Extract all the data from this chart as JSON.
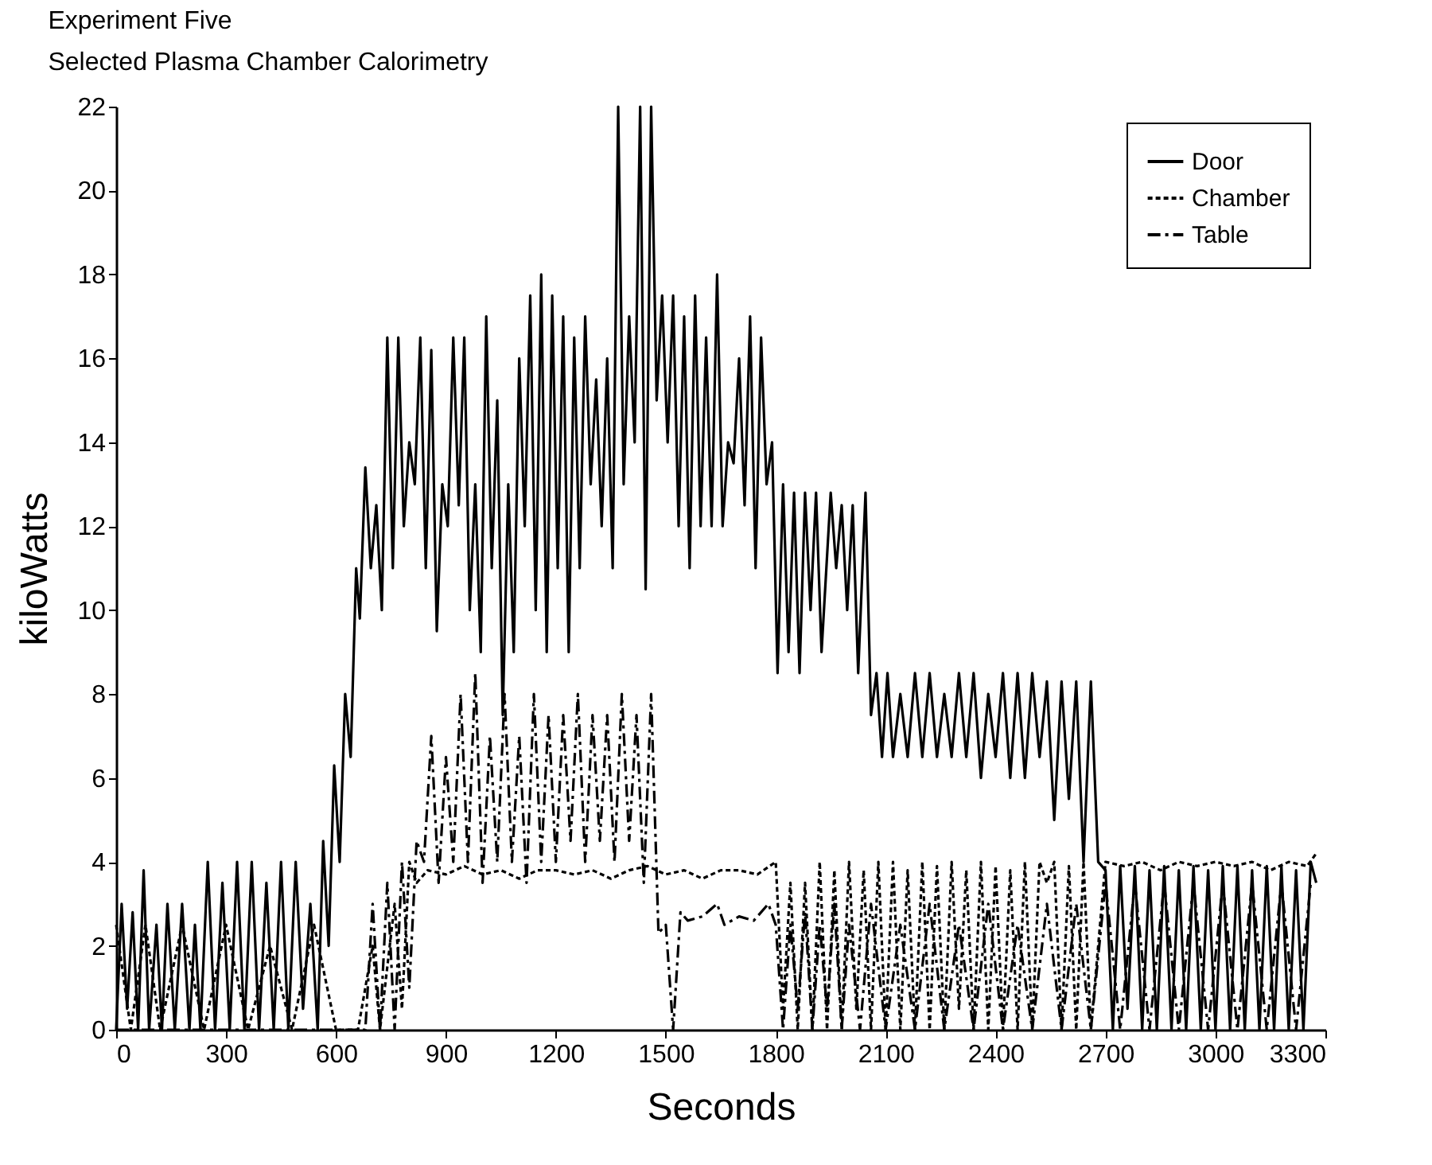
{
  "chart_data": {
    "type": "line",
    "title": "Experiment Five",
    "subtitle": "Selected Plasma Chamber Calorimetry",
    "xlabel": "Seconds",
    "ylabel": "kiloWatts",
    "xlim": [
      0,
      3300
    ],
    "xticks": [
      0,
      300,
      600,
      900,
      1200,
      1500,
      1800,
      2100,
      2400,
      2700,
      3000,
      3300
    ],
    "ylim": [
      0,
      22
    ],
    "yticks": [
      0,
      2,
      4,
      6,
      8,
      10,
      12,
      14,
      16,
      18,
      20,
      22
    ],
    "grid": false,
    "legend": "top right",
    "series": [
      {
        "name": "Door",
        "color": "#000000",
        "line_style": "solid",
        "x": [
          0,
          15,
          30,
          45,
          60,
          75,
          90,
          110,
          125,
          140,
          160,
          180,
          200,
          215,
          230,
          250,
          270,
          290,
          310,
          330,
          350,
          370,
          390,
          410,
          430,
          450,
          470,
          490,
          510,
          530,
          550,
          565,
          580,
          595,
          610,
          625,
          640,
          655,
          665,
          680,
          695,
          710,
          725,
          740,
          755,
          770,
          785,
          800,
          815,
          830,
          845,
          860,
          875,
          890,
          905,
          920,
          935,
          950,
          965,
          980,
          995,
          1010,
          1025,
          1040,
          1055,
          1070,
          1085,
          1100,
          1115,
          1130,
          1145,
          1160,
          1175,
          1190,
          1205,
          1220,
          1235,
          1250,
          1265,
          1280,
          1295,
          1310,
          1325,
          1340,
          1355,
          1370,
          1385,
          1400,
          1415,
          1430,
          1445,
          1460,
          1475,
          1490,
          1505,
          1520,
          1535,
          1550,
          1565,
          1580,
          1595,
          1610,
          1625,
          1640,
          1655,
          1670,
          1685,
          1700,
          1715,
          1730,
          1745,
          1760,
          1775,
          1790,
          1805,
          1820,
          1835,
          1850,
          1865,
          1880,
          1895,
          1910,
          1925,
          1950,
          1965,
          1980,
          1995,
          2010,
          2025,
          2045,
          2060,
          2075,
          2090,
          2105,
          2120,
          2140,
          2160,
          2180,
          2200,
          2220,
          2240,
          2260,
          2280,
          2300,
          2320,
          2340,
          2360,
          2380,
          2400,
          2420,
          2440,
          2460,
          2480,
          2500,
          2520,
          2540,
          2560,
          2580,
          2600,
          2620,
          2640,
          2660,
          2680,
          2700,
          2720,
          2740,
          2760,
          2780,
          2800,
          2820,
          2840,
          2860,
          2880,
          2900,
          2920,
          2940,
          2960,
          2980,
          3000,
          3020,
          3040,
          3060,
          3080,
          3100,
          3120,
          3140,
          3160,
          3180,
          3200,
          3220,
          3240,
          3260,
          3275
        ],
        "values": [
          0,
          3,
          0.5,
          2.8,
          0,
          3.8,
          0,
          2.5,
          0,
          3,
          0,
          3,
          0,
          2.5,
          0,
          4,
          0,
          3.5,
          0,
          4,
          0,
          4,
          0,
          3.5,
          0,
          4,
          0,
          4,
          0.5,
          3,
          0,
          4.5,
          2,
          6.3,
          4,
          8,
          6.5,
          11,
          9.8,
          13.4,
          11,
          12.5,
          10,
          16.5,
          11,
          16.5,
          12,
          14,
          13,
          16.5,
          11,
          16.2,
          9.5,
          13,
          12,
          16.5,
          12.5,
          16.5,
          10,
          13,
          9,
          17,
          11,
          15,
          7.5,
          13,
          9,
          16,
          12,
          17.5,
          10,
          18,
          9,
          17.5,
          11,
          17,
          9,
          16.5,
          11,
          17,
          13,
          15.5,
          12,
          16,
          11,
          22,
          13,
          17,
          14,
          22,
          10.5,
          22,
          15,
          17.5,
          14,
          17.5,
          12,
          17,
          11,
          17.5,
          12,
          16.5,
          12,
          18,
          12,
          14,
          13.5,
          16,
          12.5,
          17,
          11,
          16.5,
          13,
          14,
          8.5,
          13,
          9,
          12.8,
          8.5,
          12.8,
          10,
          12.8,
          9,
          12.8,
          11,
          12.5,
          10,
          12.5,
          8.5,
          12.8,
          7.5,
          8.5,
          6.5,
          8.5,
          6.5,
          8,
          6.5,
          8.5,
          6.5,
          8.5,
          6.5,
          8,
          6.5,
          8.5,
          6.5,
          8.5,
          6,
          8,
          6.5,
          8.5,
          6,
          8.5,
          6,
          8.5,
          6.5,
          8.3,
          5,
          8.3,
          5.5,
          8.3,
          4,
          8.3,
          4,
          3.8,
          0,
          3.9,
          0.5,
          3.9,
          0,
          3.8,
          0,
          3.9,
          0,
          3.8,
          0,
          3.9,
          0,
          3.8,
          0,
          3.9,
          0,
          3.9,
          0,
          3.8,
          0,
          3.9,
          0,
          3.9,
          0,
          3.8,
          0,
          4,
          3.5
        ]
      },
      {
        "name": "Chamber",
        "color": "#000000",
        "line_style": "dotted",
        "x": [
          0,
          40,
          80,
          120,
          180,
          240,
          300,
          360,
          420,
          480,
          540,
          600,
          660,
          700,
          720,
          760,
          780,
          800,
          820,
          850,
          900,
          950,
          1000,
          1050,
          1100,
          1150,
          1200,
          1250,
          1300,
          1350,
          1400,
          1450,
          1500,
          1550,
          1600,
          1650,
          1700,
          1750,
          1800,
          1820,
          1840,
          1860,
          1880,
          1900,
          1920,
          1940,
          1960,
          1980,
          2000,
          2020,
          2040,
          2060,
          2080,
          2100,
          2120,
          2140,
          2160,
          2180,
          2200,
          2220,
          2240,
          2260,
          2280,
          2300,
          2320,
          2340,
          2360,
          2380,
          2400,
          2420,
          2440,
          2460,
          2480,
          2500,
          2520,
          2540,
          2560,
          2580,
          2600,
          2620,
          2640,
          2660,
          2700,
          2750,
          2800,
          2850,
          2900,
          2950,
          3000,
          3050,
          3100,
          3150,
          3200,
          3250,
          3275
        ],
        "values": [
          2.5,
          0,
          2.5,
          0,
          2.5,
          0,
          2.5,
          0,
          2,
          0,
          2.5,
          0,
          0,
          2,
          0,
          3,
          0.5,
          4,
          3.5,
          3.8,
          3.7,
          3.9,
          3.7,
          3.8,
          3.6,
          3.8,
          3.8,
          3.7,
          3.8,
          3.6,
          3.8,
          3.9,
          3.7,
          3.8,
          3.6,
          3.8,
          3.8,
          3.7,
          4,
          0.5,
          3.5,
          0,
          3.5,
          0,
          4,
          0,
          3.8,
          0,
          4,
          0.5,
          3.8,
          0,
          4,
          0,
          4,
          0,
          3.8,
          0,
          4,
          0,
          3.9,
          0,
          4,
          0.5,
          3.8,
          0,
          4,
          0,
          3.9,
          0,
          3.8,
          0,
          4,
          0,
          4,
          3.5,
          4,
          0,
          3.9,
          0,
          4,
          0,
          4,
          3.9,
          4,
          3.8,
          4,
          3.9,
          4,
          3.9,
          4,
          3.8,
          4,
          3.9,
          4.2
        ]
      },
      {
        "name": "Table",
        "color": "#000000",
        "line_style": "dashed",
        "x": [
          0,
          680,
          700,
          720,
          740,
          760,
          780,
          800,
          820,
          840,
          860,
          880,
          900,
          920,
          940,
          960,
          980,
          1000,
          1020,
          1040,
          1060,
          1080,
          1100,
          1120,
          1140,
          1160,
          1180,
          1200,
          1220,
          1240,
          1260,
          1280,
          1300,
          1320,
          1340,
          1360,
          1380,
          1400,
          1420,
          1440,
          1460,
          1480,
          1500,
          1520,
          1540,
          1560,
          1600,
          1640,
          1660,
          1700,
          1740,
          1780,
          1800,
          1820,
          1840,
          1860,
          1880,
          1900,
          1920,
          1940,
          1960,
          1980,
          2000,
          2030,
          2060,
          2100,
          2140,
          2180,
          2220,
          2260,
          2300,
          2340,
          2380,
          2420,
          2460,
          2500,
          2540,
          2580,
          2620,
          2660,
          2700,
          2740,
          2780,
          2820,
          2860,
          2900,
          2940,
          2980,
          3020,
          3060,
          3100,
          3140,
          3180,
          3220,
          3260
        ],
        "values": [
          0,
          0,
          3,
          0,
          3.5,
          0,
          4,
          1,
          4.5,
          4,
          7,
          3.5,
          6.5,
          4,
          8,
          4,
          8.5,
          3.5,
          7,
          4,
          8,
          4,
          7,
          3.5,
          8,
          4,
          7.5,
          4,
          7.5,
          4.5,
          8,
          4,
          7.5,
          4.5,
          7.5,
          4,
          8,
          4.5,
          7.5,
          3.5,
          8,
          2.3,
          2.5,
          0,
          2.8,
          2.6,
          2.7,
          3,
          2.5,
          2.7,
          2.6,
          3,
          2.5,
          0,
          2.5,
          0.5,
          2.8,
          0,
          2.5,
          0.5,
          3,
          0,
          2.5,
          0,
          3,
          0,
          2.5,
          0,
          3,
          0,
          2.5,
          0,
          3,
          0,
          2.5,
          0,
          3,
          0,
          3,
          0,
          3.5,
          0,
          3.5,
          0,
          3.5,
          0,
          3.5,
          0,
          3.5,
          0,
          3.5,
          0,
          3.5,
          0,
          3.5
        ]
      }
    ]
  }
}
